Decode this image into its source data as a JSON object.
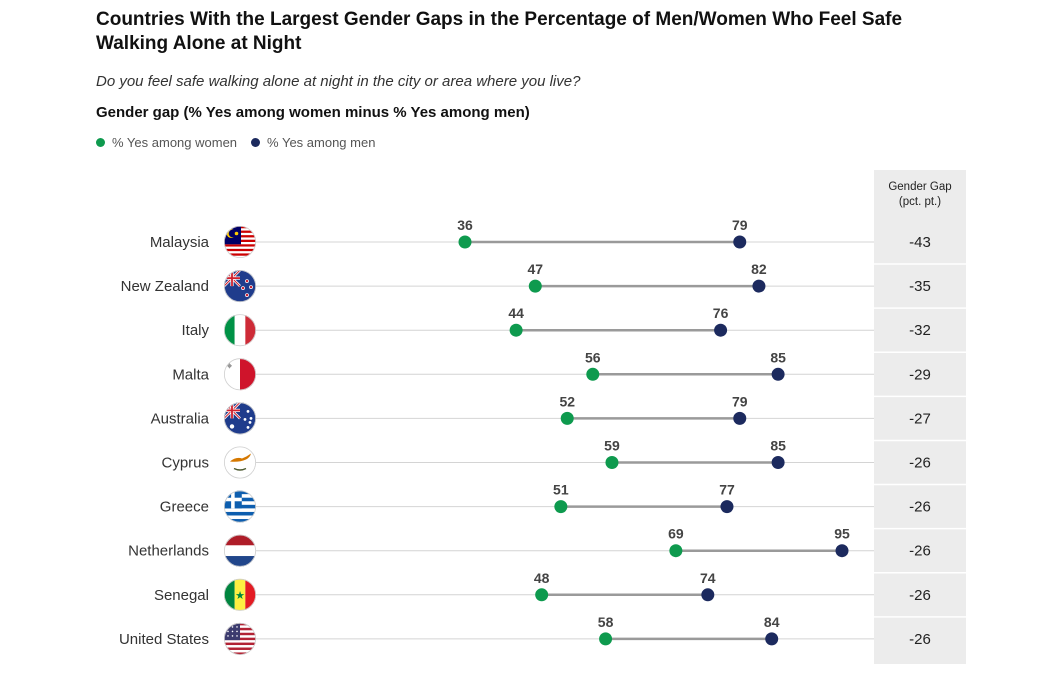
{
  "chart_data": {
    "type": "dot-range",
    "title": "Countries With the Largest Gender Gaps in the Percentage of Men/Women Who Feel Safe Walking Alone at Night",
    "subtitle": "Do you feel safe walking alone at night in the city or area where you live?",
    "measure_label": "Gender gap (% Yes among women minus % Yes among men)",
    "legend": [
      {
        "name": "% Yes among women",
        "color": "#0e9a4e"
      },
      {
        "name": "% Yes among men",
        "color": "#1c2a5e"
      }
    ],
    "gap_column_header": [
      "Gender Gap",
      "(pct. pt.)"
    ],
    "xlim": [
      36,
      95
    ],
    "rows": [
      {
        "country": "Malaysia",
        "flag": "malaysia-flag-icon",
        "women": 36,
        "men": 79,
        "gap": "-43"
      },
      {
        "country": "New Zealand",
        "flag": "new-zealand-flag-icon",
        "women": 47,
        "men": 82,
        "gap": "-35"
      },
      {
        "country": "Italy",
        "flag": "italy-flag-icon",
        "women": 44,
        "men": 76,
        "gap": "-32"
      },
      {
        "country": "Malta",
        "flag": "malta-flag-icon",
        "women": 56,
        "men": 85,
        "gap": "-29"
      },
      {
        "country": "Australia",
        "flag": "australia-flag-icon",
        "women": 52,
        "men": 79,
        "gap": "-27"
      },
      {
        "country": "Cyprus",
        "flag": "cyprus-flag-icon",
        "women": 59,
        "men": 85,
        "gap": "-26"
      },
      {
        "country": "Greece",
        "flag": "greece-flag-icon",
        "women": 51,
        "men": 77,
        "gap": "-26"
      },
      {
        "country": "Netherlands",
        "flag": "netherlands-flag-icon",
        "women": 69,
        "men": 95,
        "gap": "-26"
      },
      {
        "country": "Senegal",
        "flag": "senegal-flag-icon",
        "women": 48,
        "men": 74,
        "gap": "-26"
      },
      {
        "country": "United States",
        "flag": "united-states-flag-icon",
        "women": 58,
        "men": 84,
        "gap": "-26"
      }
    ]
  },
  "colors": {
    "women": "#0e9a4e",
    "men": "#1c2a5e",
    "gridline": "#d4d4d4",
    "connector": "#9a9a9a",
    "gap_panel": "#ececec"
  }
}
